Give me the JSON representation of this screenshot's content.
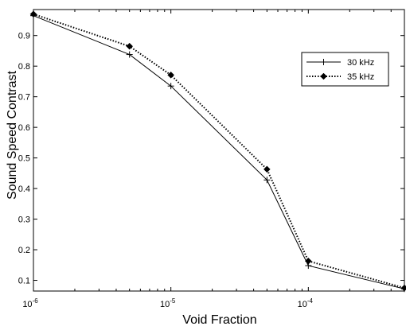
{
  "chart_data": {
    "type": "line",
    "xlabel": "Void Fraction",
    "ylabel": "Sound Speed Contrast",
    "xscale": "log",
    "xlim": [
      1e-06,
      0.0005
    ],
    "ylim": [
      0.065,
      0.985
    ],
    "grid": false,
    "legend_position": "top-right",
    "x_ticks": [
      {
        "value": 1e-06,
        "base": "10",
        "exp": "-6"
      },
      {
        "value": 1e-05,
        "base": "10",
        "exp": "-5"
      },
      {
        "value": 0.0001,
        "base": "10",
        "exp": "-4"
      }
    ],
    "y_ticks": [
      0.1,
      0.2,
      0.3,
      0.4,
      0.5,
      0.6,
      0.7,
      0.8,
      0.9
    ],
    "series": [
      {
        "name": "30 kHz",
        "color": "#000000",
        "line_style": "solid",
        "marker": "plus",
        "x": [
          1e-06,
          5e-06,
          1e-05,
          5e-05,
          0.0001,
          0.0005
        ],
        "y": [
          0.965,
          0.838,
          0.735,
          0.428,
          0.148,
          0.072
        ]
      },
      {
        "name": "35 kHz",
        "color": "#000000",
        "line_style": "dotted",
        "marker": "diamond",
        "x": [
          1e-06,
          5e-06,
          1e-05,
          5e-05,
          0.0001,
          0.0005
        ],
        "y": [
          0.97,
          0.865,
          0.771,
          0.463,
          0.163,
          0.075
        ]
      }
    ]
  }
}
